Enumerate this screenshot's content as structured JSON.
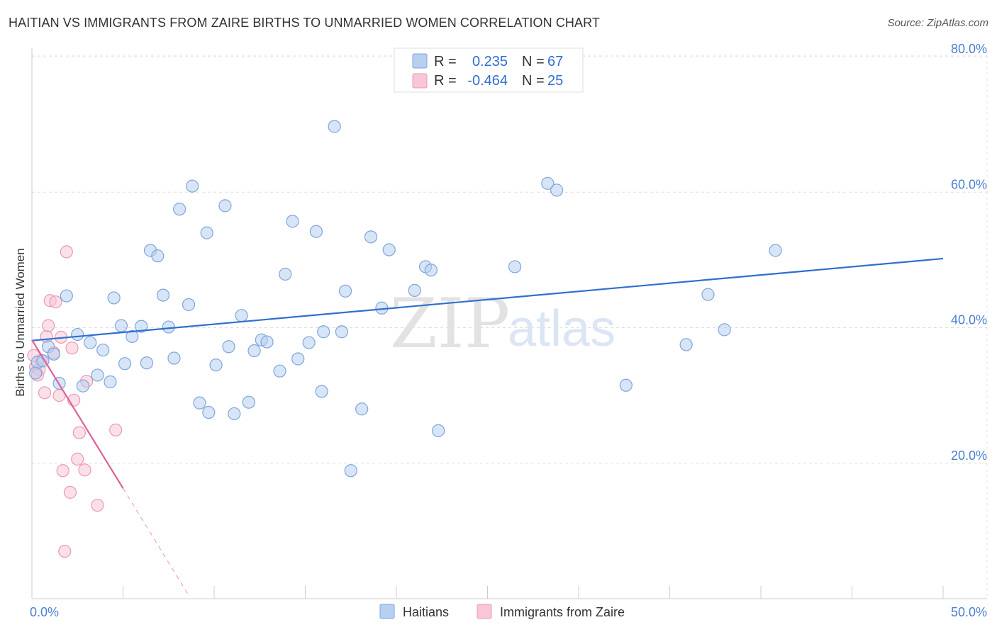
{
  "header": {
    "title": "HAITIAN VS IMMIGRANTS FROM ZAIRE BIRTHS TO UNMARRIED WOMEN CORRELATION CHART",
    "source": "Source: ZipAtlas.com"
  },
  "watermark": {
    "zip": "ZIP",
    "atlas": "atlas"
  },
  "colors": {
    "blue_fill": "#b8d0f0",
    "blue_stroke": "#7da6dc",
    "blue_line": "#2f6fd0",
    "pink_fill": "#f8c6d6",
    "pink_stroke": "#eb98b4",
    "pink_line": "#e0609a",
    "tick_label": "#4a7fd0"
  },
  "legend_top": {
    "rows": [
      {
        "r_label": "R =",
        "r_value": "0.235",
        "n_label": "N =",
        "n_value": "67"
      },
      {
        "r_label": "R =",
        "r_value": "-0.464",
        "n_label": "N =",
        "n_value": "25"
      }
    ]
  },
  "chart_data": {
    "type": "scatter",
    "title": "HAITIAN VS IMMIGRANTS FROM ZAIRE BIRTHS TO UNMARRIED WOMEN CORRELATION CHART",
    "xlabel": "",
    "ylabel": "Births to Unmarried Women",
    "xlim": [
      0,
      50
    ],
    "ylim": [
      0,
      80
    ],
    "x_tick_labels": [
      {
        "value": 0,
        "label": "0.0%"
      },
      {
        "value": 50,
        "label": "50.0%"
      }
    ],
    "x_minor_ticks": [
      0,
      5,
      10,
      15,
      20,
      25,
      30,
      35,
      40,
      45,
      50
    ],
    "y_ticks": [
      {
        "value": 20,
        "label": "20.0%"
      },
      {
        "value": 40,
        "label": "40.0%"
      },
      {
        "value": 60,
        "label": "60.0%"
      },
      {
        "value": 80,
        "label": "80.0%"
      }
    ],
    "grid": true,
    "legend_position": "bottom-center",
    "series": [
      {
        "name": "Haitians",
        "color_key": "blue",
        "r": 0.235,
        "n": 67,
        "trend": {
          "x0": 0,
          "y0": 38.1,
          "x1": 50,
          "y1": 50.2
        },
        "points": [
          [
            0.3,
            34.9
          ],
          [
            0.6,
            35.1
          ],
          [
            0.9,
            37.2
          ],
          [
            1.2,
            36.1
          ],
          [
            1.5,
            31.8
          ],
          [
            1.9,
            44.7
          ],
          [
            2.5,
            39.0
          ],
          [
            2.8,
            31.4
          ],
          [
            3.2,
            37.8
          ],
          [
            3.6,
            33.0
          ],
          [
            3.9,
            36.7
          ],
          [
            4.3,
            32.0
          ],
          [
            4.5,
            44.4
          ],
          [
            4.9,
            40.3
          ],
          [
            5.1,
            34.7
          ],
          [
            5.5,
            38.7
          ],
          [
            6.0,
            40.2
          ],
          [
            6.3,
            34.8
          ],
          [
            6.5,
            51.4
          ],
          [
            6.9,
            50.6
          ],
          [
            7.2,
            44.8
          ],
          [
            7.5,
            40.1
          ],
          [
            7.8,
            35.5
          ],
          [
            8.1,
            57.5
          ],
          [
            8.6,
            43.4
          ],
          [
            8.8,
            60.9
          ],
          [
            9.2,
            28.9
          ],
          [
            9.6,
            54.0
          ],
          [
            9.7,
            27.5
          ],
          [
            10.1,
            34.5
          ],
          [
            10.6,
            58.0
          ],
          [
            10.8,
            37.2
          ],
          [
            11.1,
            27.3
          ],
          [
            11.5,
            41.8
          ],
          [
            11.9,
            29.0
          ],
          [
            12.2,
            36.6
          ],
          [
            12.6,
            38.2
          ],
          [
            12.9,
            37.9
          ],
          [
            13.6,
            33.6
          ],
          [
            13.9,
            47.9
          ],
          [
            14.3,
            55.7
          ],
          [
            14.6,
            35.4
          ],
          [
            15.2,
            37.8
          ],
          [
            15.6,
            54.2
          ],
          [
            15.9,
            30.6
          ],
          [
            16.0,
            39.4
          ],
          [
            16.6,
            69.7
          ],
          [
            17.0,
            39.4
          ],
          [
            17.2,
            45.4
          ],
          [
            17.5,
            18.9
          ],
          [
            18.1,
            28.0
          ],
          [
            18.6,
            53.4
          ],
          [
            19.2,
            42.9
          ],
          [
            19.6,
            51.5
          ],
          [
            21.0,
            45.5
          ],
          [
            21.6,
            49.0
          ],
          [
            21.9,
            48.5
          ],
          [
            22.3,
            24.8
          ],
          [
            26.5,
            49.0
          ],
          [
            28.3,
            61.3
          ],
          [
            28.8,
            60.3
          ],
          [
            32.6,
            31.5
          ],
          [
            35.9,
            37.5
          ],
          [
            37.1,
            44.9
          ],
          [
            38.0,
            39.7
          ],
          [
            40.8,
            51.4
          ],
          [
            0.2,
            33.3
          ]
        ]
      },
      {
        "name": "Immigrants from Zaire",
        "color_key": "pink",
        "r": -0.464,
        "n": 25,
        "trend": {
          "x0": 0,
          "y0": 38.2,
          "x1": 5.0,
          "y1": 16.3,
          "dash_x1": 8.6,
          "dash_y1": 0.5
        },
        "points": [
          [
            0.2,
            34.2
          ],
          [
            0.4,
            33.8
          ],
          [
            0.5,
            35.2
          ],
          [
            0.7,
            30.4
          ],
          [
            0.8,
            38.7
          ],
          [
            0.9,
            40.3
          ],
          [
            1.0,
            44.0
          ],
          [
            1.2,
            36.3
          ],
          [
            1.3,
            43.8
          ],
          [
            1.5,
            30.0
          ],
          [
            1.6,
            38.6
          ],
          [
            1.7,
            18.9
          ],
          [
            1.8,
            7.0
          ],
          [
            1.9,
            51.2
          ],
          [
            2.1,
            15.7
          ],
          [
            2.2,
            37.0
          ],
          [
            2.3,
            29.3
          ],
          [
            2.5,
            20.6
          ],
          [
            2.6,
            24.5
          ],
          [
            2.9,
            19.0
          ],
          [
            3.0,
            32.1
          ],
          [
            3.6,
            13.8
          ],
          [
            4.6,
            24.9
          ],
          [
            0.1,
            35.9
          ],
          [
            0.3,
            33.0
          ]
        ]
      }
    ]
  }
}
